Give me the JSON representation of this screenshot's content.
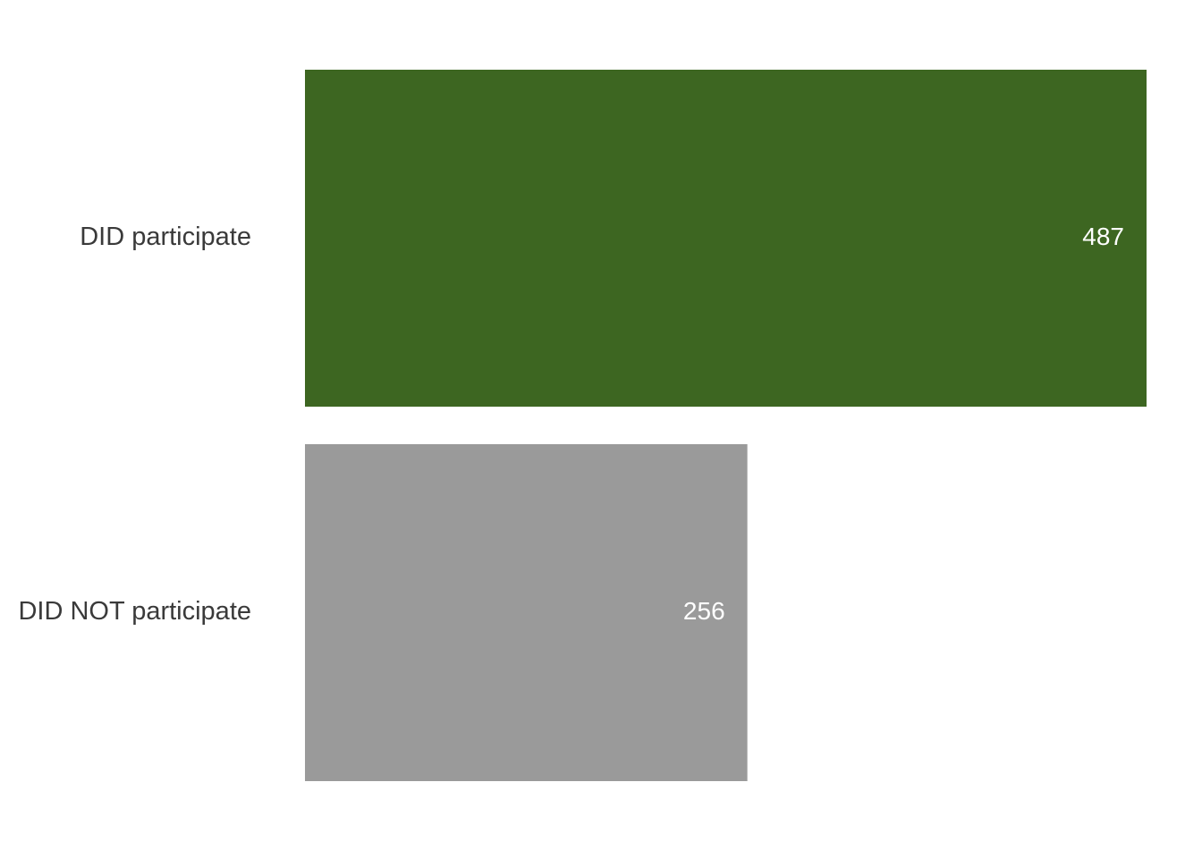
{
  "chart_data": {
    "type": "bar",
    "orientation": "horizontal",
    "categories": [
      "DID participate",
      "DID NOT participate"
    ],
    "values": [
      487,
      256
    ],
    "value_labels": [
      "487",
      "256"
    ],
    "colors": [
      "#3d6621",
      "#9a9a9a"
    ],
    "title": "",
    "xlabel": "",
    "ylabel": "",
    "xlim": [
      0,
      487
    ],
    "grid": false,
    "legend": "none"
  }
}
